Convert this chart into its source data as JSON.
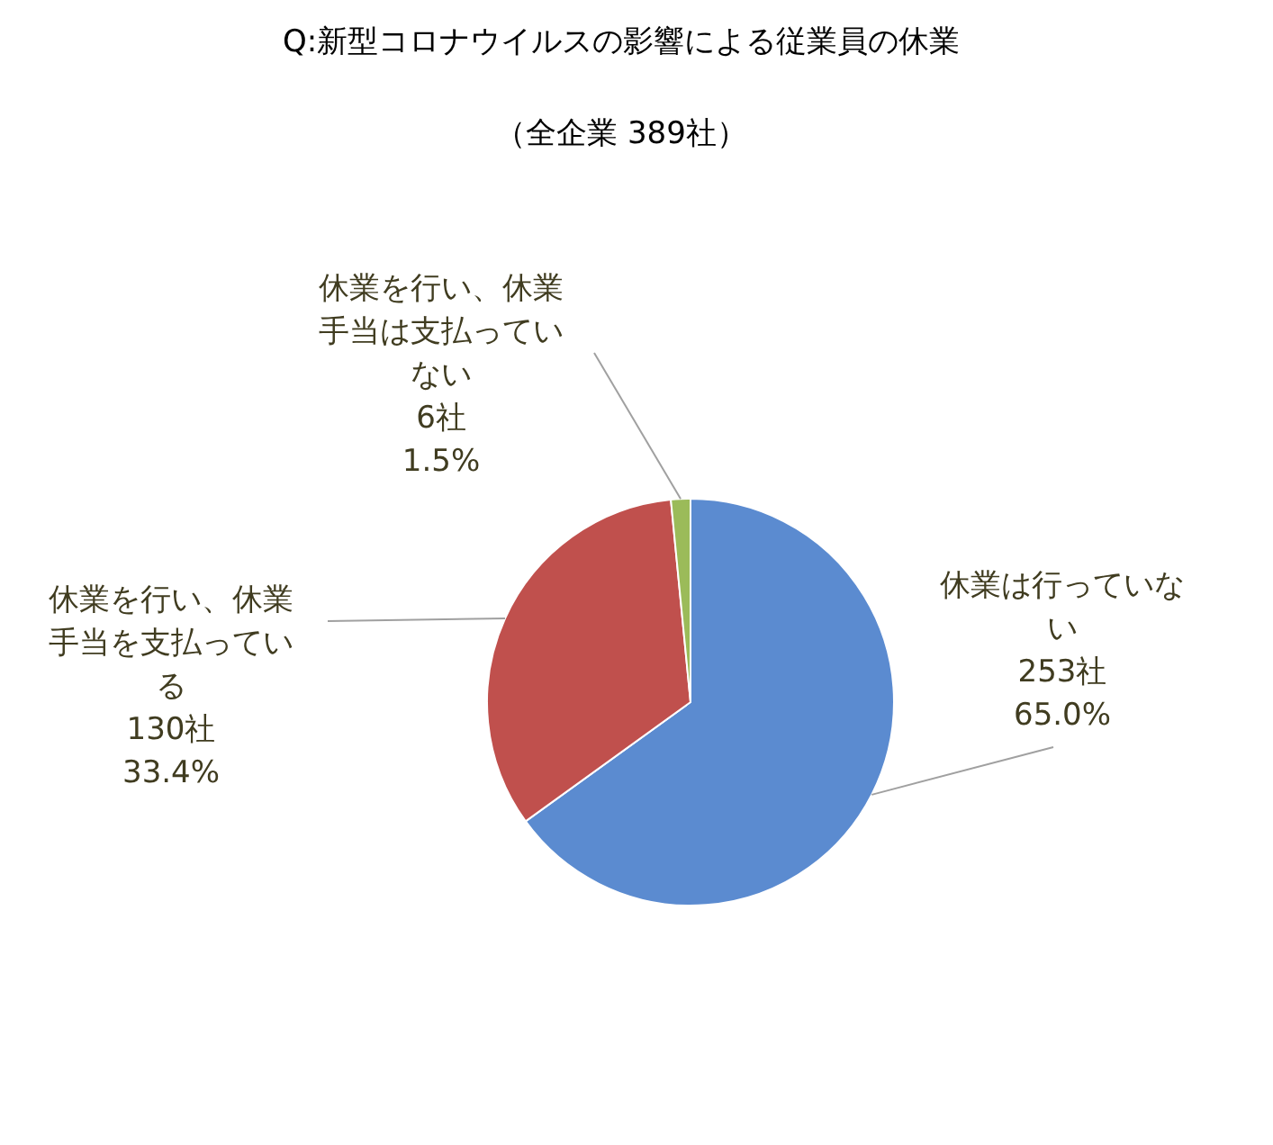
{
  "chart_data": {
    "type": "pie",
    "title": "Q:新型コロナウイルスの影響による従業員の休業",
    "subtitle": "（全企業 389社）",
    "categories": [
      "休業は行っていない",
      "休業を行い、休業手当を支払っている",
      "休業を行い、休業手当は支払っていない"
    ],
    "values": [
      253,
      130,
      6
    ],
    "colors": [
      "#5b8bd0",
      "#c0504d",
      "#9bbb59"
    ],
    "value_labels": [
      "253社\n65.0%",
      "130社\n33.4%",
      "6社\n1.5%"
    ],
    "legend": false
  }
}
